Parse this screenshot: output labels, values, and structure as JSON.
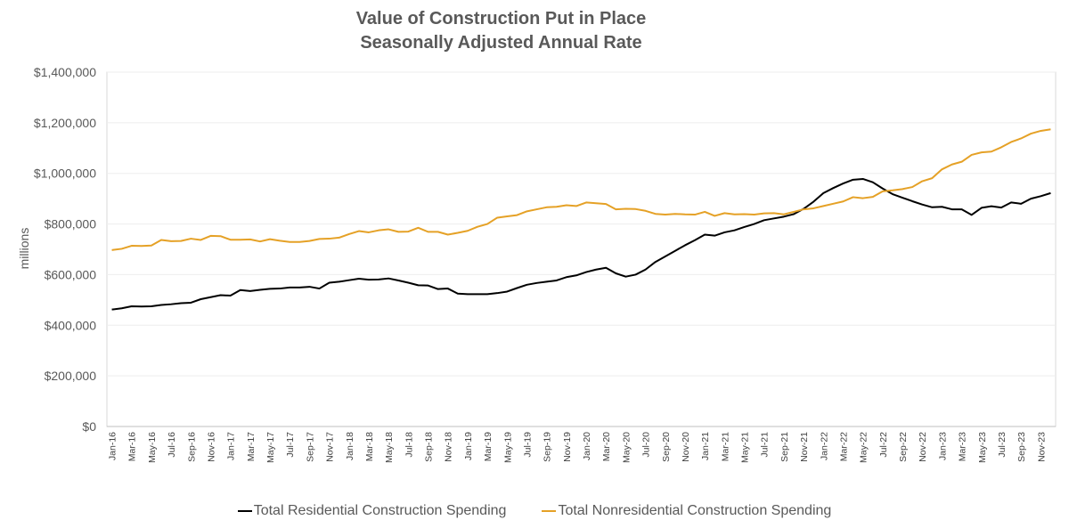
{
  "chart_data": {
    "type": "line",
    "title": "Value of Construction Put in Place",
    "subtitle": "Seasonally Adjusted Annual Rate",
    "ylabel": "millions",
    "xlabel": "",
    "ylim": [
      0,
      1400000
    ],
    "yticks": [
      0,
      200000,
      400000,
      600000,
      800000,
      1000000,
      1200000,
      1400000
    ],
    "ytick_labels": [
      "$0",
      "$200,000",
      "$400,000",
      "$600,000",
      "$800,000",
      "$1,000,000",
      "$1,200,000",
      "$1,400,000"
    ],
    "grid": true,
    "legend_position": "bottom",
    "x": [
      "Jan-16",
      "Feb-16",
      "Mar-16",
      "Apr-16",
      "May-16",
      "Jun-16",
      "Jul-16",
      "Aug-16",
      "Sep-16",
      "Oct-16",
      "Nov-16",
      "Dec-16",
      "Jan-17",
      "Feb-17",
      "Mar-17",
      "Apr-17",
      "May-17",
      "Jun-17",
      "Jul-17",
      "Aug-17",
      "Sep-17",
      "Oct-17",
      "Nov-17",
      "Dec-17",
      "Jan-18",
      "Feb-18",
      "Mar-18",
      "Apr-18",
      "May-18",
      "Jun-18",
      "Jul-18",
      "Aug-18",
      "Sep-18",
      "Oct-18",
      "Nov-18",
      "Dec-18",
      "Jan-19",
      "Feb-19",
      "Mar-19",
      "Apr-19",
      "May-19",
      "Jun-19",
      "Jul-19",
      "Aug-19",
      "Sep-19",
      "Oct-19",
      "Nov-19",
      "Dec-19",
      "Jan-20",
      "Feb-20",
      "Mar-20",
      "Apr-20",
      "May-20",
      "Jun-20",
      "Jul-20",
      "Aug-20",
      "Sep-20",
      "Oct-20",
      "Nov-20",
      "Dec-20",
      "Jan-21",
      "Feb-21",
      "Mar-21",
      "Apr-21",
      "May-21",
      "Jun-21",
      "Jul-21",
      "Aug-21",
      "Sep-21",
      "Oct-21",
      "Nov-21",
      "Dec-21",
      "Jan-22",
      "Feb-22",
      "Mar-22",
      "Apr-22",
      "May-22",
      "Jun-22",
      "Jul-22",
      "Aug-22",
      "Sep-22",
      "Oct-22",
      "Nov-22",
      "Dec-22",
      "Jan-23",
      "Feb-23",
      "Mar-23",
      "Apr-23",
      "May-23",
      "Jun-23",
      "Jul-23",
      "Aug-23",
      "Sep-23",
      "Oct-23",
      "Nov-23",
      "Dec-23"
    ],
    "x_tick_labels": [
      "Jan-16",
      "Mar-16",
      "May-16",
      "Jul-16",
      "Sep-16",
      "Nov-16",
      "Jan-17",
      "Mar-17",
      "May-17",
      "Jul-17",
      "Sep-17",
      "Nov-17",
      "Jan-18",
      "Mar-18",
      "May-18",
      "Jul-18",
      "Sep-18",
      "Nov-18",
      "Jan-19",
      "Mar-19",
      "May-19",
      "Jul-19",
      "Sep-19",
      "Nov-19",
      "Jan-20",
      "Mar-20",
      "May-20",
      "Jul-20",
      "Sep-20",
      "Nov-20",
      "Jan-21",
      "Mar-21",
      "May-21",
      "Jul-21",
      "Sep-21",
      "Nov-21",
      "Jan-22",
      "Mar-22",
      "May-22",
      "Jul-22",
      "Sep-22",
      "Nov-22",
      "Jan-23",
      "Mar-23",
      "May-23",
      "Jul-23",
      "Sep-23",
      "Nov-23"
    ],
    "series": [
      {
        "name": "Total Residential Construction Spending",
        "color": "#000000",
        "values": [
          462000,
          467000,
          475000,
          474000,
          475000,
          480000,
          483000,
          487000,
          489000,
          503000,
          511000,
          519000,
          517000,
          539000,
          535000,
          540000,
          544000,
          545000,
          549000,
          549000,
          552000,
          545000,
          568000,
          572000,
          578000,
          584000,
          580000,
          581000,
          585000,
          577000,
          568000,
          558000,
          557000,
          543000,
          545000,
          525000,
          523000,
          523000,
          523000,
          527000,
          533000,
          547000,
          560000,
          567000,
          572000,
          577000,
          590000,
          597000,
          610000,
          620000,
          627000,
          605000,
          592000,
          600000,
          620000,
          650000,
          672000,
          694000,
          716000,
          736000,
          758000,
          754000,
          767000,
          775000,
          788000,
          800000,
          815000,
          822000,
          829000,
          839000,
          860000,
          888000,
          922000,
          942000,
          960000,
          975000,
          978000,
          965000,
          940000,
          918000,
          904000,
          890000,
          877000,
          866000,
          868000,
          858000,
          858000,
          836000,
          864000,
          870000,
          865000,
          885000,
          880000,
          900000,
          910000,
          922000
        ]
      },
      {
        "name": "Total Nonresidential Construction Spending",
        "color": "#E5A126",
        "values": [
          697000,
          702000,
          714000,
          713000,
          715000,
          737000,
          732000,
          733000,
          742000,
          737000,
          753000,
          752000,
          738000,
          738000,
          739000,
          731000,
          740000,
          734000,
          729000,
          729000,
          733000,
          741000,
          742000,
          746000,
          760000,
          772000,
          767000,
          775000,
          779000,
          769000,
          770000,
          785000,
          769000,
          769000,
          758000,
          765000,
          773000,
          789000,
          800000,
          825000,
          830000,
          835000,
          850000,
          858000,
          866000,
          868000,
          874000,
          871000,
          885000,
          882000,
          879000,
          858000,
          860000,
          859000,
          852000,
          840000,
          837000,
          840000,
          838000,
          837000,
          848000,
          832000,
          843000,
          838000,
          839000,
          837000,
          842000,
          843000,
          838000,
          848000,
          858000,
          862000,
          871000,
          880000,
          889000,
          906000,
          902000,
          907000,
          929000,
          933000,
          938000,
          946000,
          969000,
          981000,
          1016000,
          1035000,
          1046000,
          1073000,
          1083000,
          1086000,
          1103000,
          1124000,
          1138000,
          1157000,
          1168000,
          1174000
        ]
      }
    ]
  }
}
